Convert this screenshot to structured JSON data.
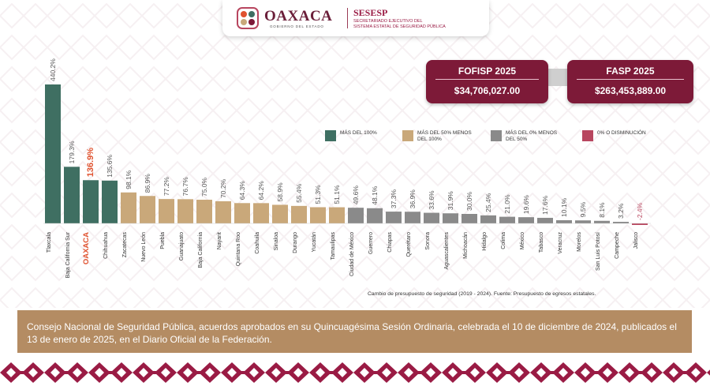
{
  "header": {
    "oaxaca_title": "OAXACA",
    "oaxaca_subtitle": "GOBIERNO DEL ESTADO",
    "sesesp_title": "SESESP",
    "sesesp_subtitle_1": "SECRETARIADO EJECUTIVO DEL",
    "sesesp_subtitle_2": "SISTEMA ESTATAL DE SEGURIDAD PÚBLICA"
  },
  "funds": [
    {
      "title": "FOFISP 2025",
      "value": "$34,706,027.00"
    },
    {
      "title": "FASP 2025",
      "value": "$263,453,889.00"
    }
  ],
  "legend": [
    {
      "label": "MÁS DEL 100%",
      "color": "#3f6f62"
    },
    {
      "label": "MÁS DEL 50% MENOS DEL 100%",
      "color": "#c9a87a"
    },
    {
      "label": "MÁS DEL 0% MENOS DEL 50%",
      "color": "#8a8a8a"
    },
    {
      "label": "0% O DISMINUCIÓN",
      "color": "#b8465f"
    }
  ],
  "chart_data": {
    "type": "bar",
    "categories": [
      "Tlaxcala",
      "Baja California Sur",
      "OAXACA",
      "Chihuahua",
      "Zacatecas",
      "Nuevo León",
      "Puebla",
      "Guanajuato",
      "Baja California",
      "Nayarit",
      "Quintana Roo",
      "Coahuila",
      "Sinaloa",
      "Durango",
      "Yucatán",
      "Tamaulipas",
      "Ciudad de México",
      "Guerrero",
      "Chiapas",
      "Querétaro",
      "Sonora",
      "Aguascalientes",
      "Michoacán",
      "Hidalgo",
      "Colima",
      "México",
      "Tabasco",
      "Veracruz",
      "Morelos",
      "San Luis Potosí",
      "Campeche",
      "Jalisco"
    ],
    "values": [
      440.2,
      179.3,
      136.9,
      135.6,
      98.1,
      86.9,
      77.2,
      76.7,
      75.0,
      70.2,
      64.3,
      64.2,
      58.9,
      55.4,
      51.3,
      51.1,
      49.6,
      48.1,
      37.3,
      36.9,
      33.6,
      31.9,
      30.0,
      25.4,
      21.0,
      19.6,
      17.6,
      10.1,
      9.5,
      8.1,
      3.2,
      -2.4
    ],
    "value_labels": [
      "440.2%",
      "179.3%",
      "136.9%",
      "135.6%",
      "98.1%",
      "86.9%",
      "77.2%",
      "76.7%",
      "75.0%",
      "70.2%",
      "64.3%",
      "64.2%",
      "58.9%",
      "55.4%",
      "51.3%",
      "51.1%",
      "49.6%",
      "48.1%",
      "37.3%",
      "36.9%",
      "33.6%",
      "31.9%",
      "30.0%",
      "25.4%",
      "21.0%",
      "19.6%",
      "17.6%",
      "10.1%",
      "9.5%",
      "8.1%",
      "3.2%",
      "-2.4%"
    ],
    "highlight": "OAXACA",
    "highlight_color": "#e0522f",
    "ylim": [
      -2.4,
      440.2
    ],
    "grid": false,
    "legend_placement": "top-right",
    "source": "Cambio de presupuesto de seguridad (2019 - 2024). Fuente: Presupuesto de egresos estatales."
  },
  "banner": {
    "text": "Consejo Nacional de Seguridad Pública,  acuerdos aprobados en su Quincuagésima Sesión Ordinaria, celebrada el 10 de diciembre de 2024, publicados el 13 de enero de 2025, en el Diario Oficial de la Federación."
  },
  "colors": {
    "wine": "#7d1a38",
    "banner": "#b48c63",
    "green": "#3f6f62",
    "tan": "#c9a87a",
    "gray": "#8a8a8a",
    "red": "#b8465f"
  }
}
